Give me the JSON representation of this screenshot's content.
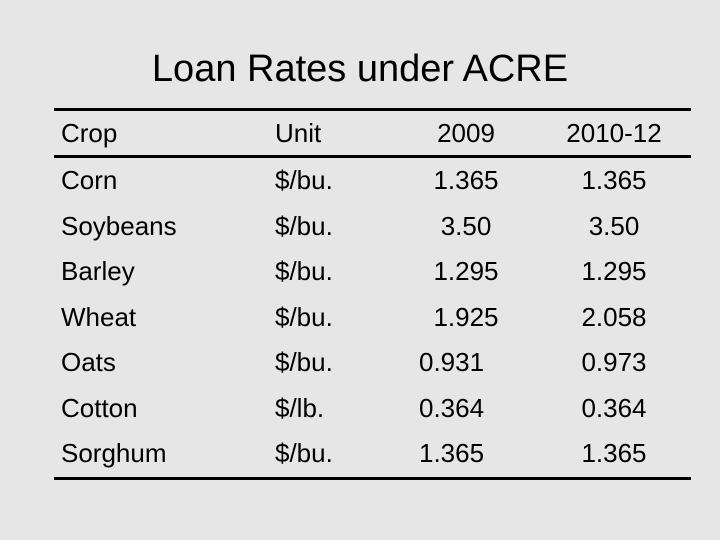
{
  "title": "Loan Rates under ACRE",
  "table": {
    "headers": [
      "Crop",
      "Unit",
      "2009",
      "2010-12"
    ],
    "rows": [
      {
        "crop": "Corn",
        "unit": "$/bu.",
        "y2009": "1.365",
        "y2010_12": "1.365"
      },
      {
        "crop": "Soybeans",
        "unit": "$/bu.",
        "y2009": "3.50",
        "y2010_12": "3.50"
      },
      {
        "crop": "Barley",
        "unit": "$/bu.",
        "y2009": "1.295",
        "y2010_12": "1.295"
      },
      {
        "crop": "Wheat",
        "unit": "$/bu.",
        "y2009": "1.925",
        "y2010_12": "2.058"
      },
      {
        "crop": "Oats",
        "unit": "$/bu.",
        "y2009": "0.931",
        "y2010_12": "0.973"
      },
      {
        "crop": "Cotton",
        "unit": "$/lb.",
        "y2009": "0.364",
        "y2010_12": "0.364"
      },
      {
        "crop": "Sorghum",
        "unit": "$/bu.",
        "y2009": "1.365",
        "y2010_12": "1.365"
      }
    ]
  }
}
